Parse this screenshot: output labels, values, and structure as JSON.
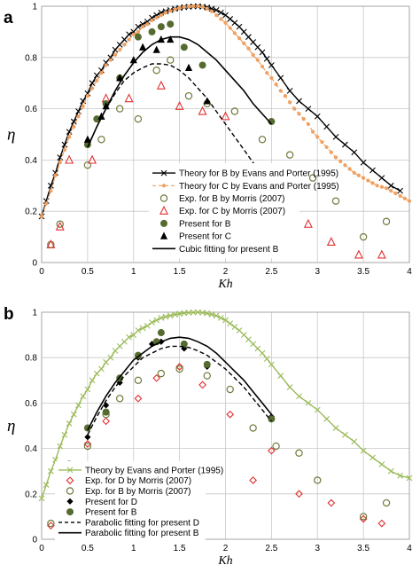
{
  "chart_data": [
    {
      "panel": "a",
      "type": "scatter",
      "xlabel": "Kh",
      "ylabel": "η",
      "xlim": [
        0,
        4
      ],
      "ylim": [
        0,
        1
      ],
      "xticks": [
        "0",
        "0.5",
        "1",
        "1.5",
        "2",
        "2.5",
        "3",
        "3.5",
        "4"
      ],
      "yticks": [
        "0",
        "0.2",
        "0.4",
        "0.6",
        "0.8",
        "1"
      ],
      "grid": true,
      "legend_position": "center",
      "series": [
        {
          "name": "Theory for B by Evans and Porter (1995)",
          "style": "line-x",
          "color": "#000000",
          "x": [
            0.0,
            0.05,
            0.1,
            0.15,
            0.2,
            0.25,
            0.3,
            0.35,
            0.4,
            0.45,
            0.5,
            0.55,
            0.6,
            0.65,
            0.7,
            0.75,
            0.8,
            0.85,
            0.9,
            0.95,
            1.0,
            1.05,
            1.1,
            1.15,
            1.2,
            1.25,
            1.3,
            1.35,
            1.4,
            1.45,
            1.5,
            1.55,
            1.6,
            1.65,
            1.7,
            1.75,
            1.8,
            1.85,
            1.9,
            1.95,
            2.0,
            2.05,
            2.1,
            2.15,
            2.2,
            2.25,
            2.3,
            2.35,
            2.4,
            2.45,
            2.5,
            2.6,
            2.7,
            2.8,
            2.9,
            3.0,
            3.1,
            3.2,
            3.3,
            3.4,
            3.5,
            3.6,
            3.7,
            3.8,
            3.9
          ],
          "y": [
            0.18,
            0.24,
            0.3,
            0.35,
            0.41,
            0.46,
            0.51,
            0.55,
            0.59,
            0.63,
            0.66,
            0.7,
            0.73,
            0.75,
            0.78,
            0.8,
            0.83,
            0.85,
            0.87,
            0.89,
            0.9,
            0.92,
            0.93,
            0.94,
            0.955,
            0.965,
            0.975,
            0.98,
            0.985,
            0.99,
            0.993,
            0.996,
            0.998,
            0.999,
            1.0,
            0.998,
            0.995,
            0.99,
            0.985,
            0.975,
            0.965,
            0.95,
            0.935,
            0.92,
            0.9,
            0.88,
            0.86,
            0.84,
            0.82,
            0.795,
            0.77,
            0.72,
            0.67,
            0.63,
            0.6,
            0.57,
            0.53,
            0.49,
            0.46,
            0.43,
            0.39,
            0.36,
            0.33,
            0.3,
            0.28
          ]
        },
        {
          "name": "Theory for C by Evans and Porter (1995)",
          "style": "dashed-dot",
          "color": "#f0a060",
          "x": [
            0.0,
            0.05,
            0.1,
            0.15,
            0.2,
            0.25,
            0.3,
            0.35,
            0.4,
            0.45,
            0.5,
            0.55,
            0.6,
            0.65,
            0.7,
            0.75,
            0.8,
            0.85,
            0.9,
            0.95,
            1.0,
            1.05,
            1.1,
            1.15,
            1.2,
            1.25,
            1.3,
            1.35,
            1.4,
            1.45,
            1.5,
            1.55,
            1.6,
            1.65,
            1.7,
            1.75,
            1.8,
            1.85,
            1.9,
            1.95,
            2.0,
            2.05,
            2.1,
            2.15,
            2.2,
            2.25,
            2.3,
            2.35,
            2.4,
            2.45,
            2.5,
            2.55,
            2.6,
            2.65,
            2.7,
            2.75,
            2.8,
            2.85,
            2.9,
            2.95,
            3.0,
            3.05,
            3.1,
            3.15,
            3.2,
            3.25,
            3.3,
            3.35,
            3.4,
            3.45,
            3.5,
            3.55,
            3.6,
            3.65,
            3.7,
            3.75,
            3.8,
            3.85,
            3.9,
            3.95,
            4.0
          ],
          "y": [
            0.18,
            0.23,
            0.28,
            0.34,
            0.39,
            0.44,
            0.49,
            0.53,
            0.57,
            0.61,
            0.65,
            0.68,
            0.71,
            0.74,
            0.77,
            0.79,
            0.81,
            0.83,
            0.85,
            0.87,
            0.89,
            0.9,
            0.92,
            0.93,
            0.945,
            0.955,
            0.965,
            0.975,
            0.982,
            0.988,
            0.993,
            0.997,
            0.999,
            1.0,
            1.0,
            0.998,
            0.99,
            0.98,
            0.965,
            0.95,
            0.935,
            0.915,
            0.895,
            0.875,
            0.855,
            0.835,
            0.81,
            0.79,
            0.765,
            0.74,
            0.72,
            0.695,
            0.67,
            0.65,
            0.625,
            0.6,
            0.58,
            0.56,
            0.54,
            0.51,
            0.49,
            0.47,
            0.45,
            0.43,
            0.41,
            0.395,
            0.38,
            0.365,
            0.35,
            0.34,
            0.33,
            0.32,
            0.31,
            0.3,
            0.295,
            0.29,
            0.28,
            0.27,
            0.26,
            0.25,
            0.24
          ]
        },
        {
          "name": "Exp. for B by Morris (2007)",
          "style": "open-circle",
          "color": "#6b7a3a",
          "x": [
            0.1,
            0.2,
            0.5,
            0.65,
            0.85,
            1.05,
            1.25,
            1.4,
            1.6,
            1.8,
            2.1,
            2.4,
            2.7,
            2.95,
            3.2,
            3.5,
            3.75
          ],
          "y": [
            0.07,
            0.15,
            0.38,
            0.48,
            0.6,
            0.56,
            0.75,
            0.79,
            0.65,
            0.62,
            0.59,
            0.48,
            0.42,
            0.33,
            0.24,
            0.1,
            0.16
          ]
        },
        {
          "name": "Exp. for C by Morris (2007)",
          "style": "open-triangle",
          "color": "#e03030",
          "x": [
            0.1,
            0.2,
            0.3,
            0.55,
            0.7,
            0.95,
            1.3,
            1.5,
            1.75,
            2.0,
            2.3,
            2.6,
            2.9,
            3.15,
            3.45,
            3.7
          ],
          "y": [
            0.07,
            0.14,
            0.4,
            0.4,
            0.64,
            0.64,
            0.69,
            0.61,
            0.59,
            0.57,
            0.26,
            0.18,
            0.15,
            0.08,
            0.03,
            0.03
          ]
        },
        {
          "name": "Present for B",
          "style": "filled-circle",
          "color": "#556b2f",
          "x": [
            0.5,
            0.6,
            0.7,
            0.85,
            1.05,
            1.2,
            1.3,
            1.4,
            1.55,
            1.75,
            2.5
          ],
          "y": [
            0.46,
            0.56,
            0.62,
            0.72,
            0.88,
            0.9,
            0.92,
            0.93,
            0.84,
            0.77,
            0.55
          ]
        },
        {
          "name": "Present for C",
          "style": "filled-triangle",
          "color": "#000000",
          "x": [
            0.5,
            0.65,
            0.7,
            0.85,
            1.0,
            1.1,
            1.25,
            1.3,
            1.4,
            1.6,
            1.8,
            2.5
          ],
          "y": [
            0.48,
            0.57,
            0.61,
            0.72,
            0.79,
            0.84,
            0.83,
            0.87,
            0.87,
            0.76,
            0.63,
            0.31
          ]
        },
        {
          "name": "Cubic fitting for present B",
          "style": "solid-line",
          "color": "#000000",
          "x": [
            0.5,
            0.6,
            0.7,
            0.8,
            0.9,
            1.0,
            1.1,
            1.2,
            1.3,
            1.4,
            1.5,
            1.6,
            1.7,
            1.8,
            1.9,
            2.0,
            2.1,
            2.2,
            2.3,
            2.4,
            2.5
          ],
          "y": [
            0.45,
            0.53,
            0.6,
            0.67,
            0.73,
            0.78,
            0.82,
            0.85,
            0.87,
            0.88,
            0.88,
            0.87,
            0.85,
            0.82,
            0.79,
            0.75,
            0.71,
            0.67,
            0.62,
            0.58,
            0.54
          ]
        },
        {
          "name": "",
          "style": "dashed-line",
          "color": "#000000",
          "x": [
            0.5,
            0.6,
            0.7,
            0.8,
            0.9,
            1.0,
            1.1,
            1.2,
            1.3,
            1.4,
            1.5,
            1.6,
            1.7,
            1.8,
            1.9,
            2.0,
            2.1,
            2.2,
            2.3,
            2.4,
            2.5
          ],
          "y": [
            0.45,
            0.53,
            0.6,
            0.66,
            0.71,
            0.74,
            0.76,
            0.775,
            0.775,
            0.77,
            0.75,
            0.72,
            0.68,
            0.64,
            0.59,
            0.54,
            0.49,
            0.44,
            0.39,
            0.35,
            0.3
          ]
        }
      ]
    },
    {
      "panel": "b",
      "type": "scatter",
      "xlabel": "Kh",
      "ylabel": "η",
      "xlim": [
        0,
        4
      ],
      "ylim": [
        0,
        1
      ],
      "xticks": [
        "0",
        "0.5",
        "1",
        "1.5",
        "2",
        "2.5",
        "3",
        "3.5",
        "4"
      ],
      "yticks": [
        "0",
        "0.2",
        "0.4",
        "0.6",
        "0.8",
        "1"
      ],
      "grid": true,
      "legend_position": "lower-left",
      "series": [
        {
          "name": "Theory by Evans and Porter (1995)",
          "style": "line-x",
          "color": "#9bbb59",
          "x": [
            0.0,
            0.05,
            0.1,
            0.15,
            0.2,
            0.25,
            0.3,
            0.35,
            0.4,
            0.45,
            0.5,
            0.55,
            0.6,
            0.65,
            0.7,
            0.75,
            0.8,
            0.85,
            0.9,
            0.95,
            1.0,
            1.05,
            1.1,
            1.15,
            1.2,
            1.25,
            1.3,
            1.35,
            1.4,
            1.45,
            1.5,
            1.55,
            1.6,
            1.65,
            1.7,
            1.75,
            1.8,
            1.85,
            1.9,
            1.95,
            2.0,
            2.05,
            2.1,
            2.15,
            2.2,
            2.25,
            2.3,
            2.35,
            2.4,
            2.45,
            2.5,
            2.6,
            2.7,
            2.8,
            2.9,
            3.0,
            3.1,
            3.2,
            3.3,
            3.4,
            3.5,
            3.6,
            3.7,
            3.8,
            3.9,
            4.0
          ],
          "y": [
            0.18,
            0.24,
            0.3,
            0.35,
            0.41,
            0.46,
            0.51,
            0.55,
            0.59,
            0.63,
            0.66,
            0.7,
            0.73,
            0.75,
            0.78,
            0.8,
            0.83,
            0.85,
            0.87,
            0.89,
            0.9,
            0.92,
            0.93,
            0.94,
            0.955,
            0.965,
            0.975,
            0.98,
            0.985,
            0.99,
            0.993,
            0.996,
            0.998,
            0.999,
            1.0,
            0.998,
            0.995,
            0.99,
            0.985,
            0.975,
            0.965,
            0.95,
            0.935,
            0.92,
            0.9,
            0.88,
            0.86,
            0.84,
            0.82,
            0.795,
            0.77,
            0.72,
            0.67,
            0.63,
            0.6,
            0.57,
            0.53,
            0.49,
            0.46,
            0.43,
            0.39,
            0.36,
            0.33,
            0.3,
            0.28,
            0.27
          ]
        },
        {
          "name": "Exp. for D by Morris (2007)",
          "style": "open-diamond",
          "color": "#e03030",
          "x": [
            0.1,
            0.2,
            0.5,
            0.7,
            1.05,
            1.25,
            1.5,
            1.75,
            2.05,
            2.3,
            2.5,
            2.8,
            3.15,
            3.5,
            3.7
          ],
          "y": [
            0.06,
            0.14,
            0.42,
            0.52,
            0.62,
            0.71,
            0.76,
            0.68,
            0.55,
            0.26,
            0.39,
            0.2,
            0.16,
            0.09,
            0.07
          ]
        },
        {
          "name": "Exp. for B by Morris (2007)",
          "style": "open-circle",
          "color": "#6b7a3a",
          "x": [
            0.1,
            0.2,
            0.3,
            0.5,
            0.7,
            0.85,
            1.05,
            1.3,
            1.5,
            1.8,
            2.05,
            2.3,
            2.55,
            2.8,
            3.0,
            3.5,
            3.75
          ],
          "y": [
            0.07,
            0.15,
            0.33,
            0.41,
            0.55,
            0.62,
            0.7,
            0.73,
            0.75,
            0.72,
            0.66,
            0.49,
            0.41,
            0.38,
            0.26,
            0.1,
            0.16
          ]
        },
        {
          "name": "Present for D",
          "style": "filled-diamond",
          "color": "#000000",
          "x": [
            0.5,
            0.7,
            0.85,
            1.05,
            1.2,
            1.3,
            1.55,
            1.8,
            2.5
          ],
          "y": [
            0.45,
            0.59,
            0.69,
            0.8,
            0.86,
            0.87,
            0.84,
            0.76,
            0.54
          ]
        },
        {
          "name": "Present for B",
          "style": "filled-circle",
          "color": "#556b2f",
          "x": [
            0.5,
            0.7,
            0.85,
            1.05,
            1.25,
            1.3,
            1.55,
            1.8,
            2.5
          ],
          "y": [
            0.49,
            0.56,
            0.71,
            0.81,
            0.87,
            0.91,
            0.86,
            0.77,
            0.53
          ]
        },
        {
          "name": "Parabolic fitting for present D",
          "style": "dashed-line",
          "color": "#000000",
          "x": [
            0.5,
            0.6,
            0.7,
            0.8,
            0.9,
            1.0,
            1.1,
            1.2,
            1.3,
            1.4,
            1.5,
            1.6,
            1.7,
            1.8,
            1.9,
            2.0,
            2.1,
            2.2,
            2.3,
            2.4,
            2.5
          ],
          "y": [
            0.46,
            0.54,
            0.61,
            0.67,
            0.72,
            0.76,
            0.8,
            0.82,
            0.84,
            0.85,
            0.85,
            0.845,
            0.83,
            0.81,
            0.78,
            0.75,
            0.71,
            0.67,
            0.62,
            0.57,
            0.52
          ]
        },
        {
          "name": "Parabolic fitting for present B",
          "style": "solid-line",
          "color": "#000000",
          "x": [
            0.5,
            0.6,
            0.7,
            0.8,
            0.9,
            1.0,
            1.1,
            1.2,
            1.3,
            1.4,
            1.5,
            1.6,
            1.7,
            1.8,
            1.9,
            2.0,
            2.1,
            2.2,
            2.3,
            2.4,
            2.5
          ],
          "y": [
            0.48,
            0.56,
            0.63,
            0.69,
            0.74,
            0.79,
            0.82,
            0.85,
            0.87,
            0.885,
            0.89,
            0.885,
            0.87,
            0.85,
            0.82,
            0.78,
            0.74,
            0.7,
            0.65,
            0.6,
            0.55
          ]
        }
      ]
    }
  ]
}
